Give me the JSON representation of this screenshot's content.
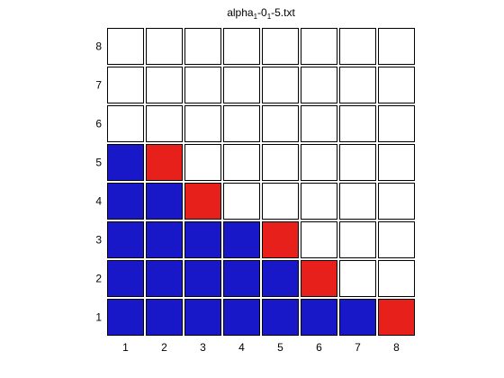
{
  "chart_data": {
    "type": "heatmap",
    "title": {
      "parts": [
        {
          "text": "alpha",
          "sub": false
        },
        {
          "text": "1",
          "sub": true
        },
        {
          "text": "-0",
          "sub": false
        },
        {
          "text": "1",
          "sub": true
        },
        {
          "text": "-5.txt",
          "sub": false
        }
      ]
    },
    "xticks": [
      "1",
      "2",
      "3",
      "4",
      "5",
      "6",
      "7",
      "8"
    ],
    "yticks": [
      "1",
      "2",
      "3",
      "4",
      "5",
      "6",
      "7",
      "8"
    ],
    "xlim": [
      0.5,
      8.5
    ],
    "ylim": [
      0.5,
      8.5
    ],
    "grid": false,
    "legend": "none",
    "colors": {
      "blue": "#1818c8",
      "red": "#e8201c",
      "white": "#ffffff",
      "border": "#000000"
    },
    "rows_bottom_to_top": [
      [
        "blue",
        "blue",
        "blue",
        "blue",
        "blue",
        "blue",
        "blue",
        "red"
      ],
      [
        "blue",
        "blue",
        "blue",
        "blue",
        "blue",
        "red",
        "white",
        "white"
      ],
      [
        "blue",
        "blue",
        "blue",
        "blue",
        "red",
        "white",
        "white",
        "white"
      ],
      [
        "blue",
        "blue",
        "red",
        "white",
        "white",
        "white",
        "white",
        "white"
      ],
      [
        "blue",
        "red",
        "white",
        "white",
        "white",
        "white",
        "white",
        "white"
      ],
      [
        "white",
        "white",
        "white",
        "white",
        "white",
        "white",
        "white",
        "white"
      ],
      [
        "white",
        "white",
        "white",
        "white",
        "white",
        "white",
        "white",
        "white"
      ],
      [
        "white",
        "white",
        "white",
        "white",
        "white",
        "white",
        "white",
        "white"
      ]
    ]
  }
}
